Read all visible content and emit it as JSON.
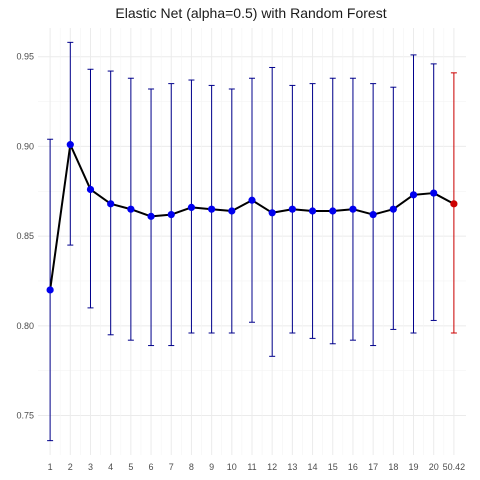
{
  "chart_data": {
    "type": "line",
    "title": "Elastic Net (alpha=0.5) with Random Forest",
    "xlabel": "",
    "ylabel": "",
    "ylim": [
      0.728,
      0.966
    ],
    "y_ticks": [
      0.75,
      0.8,
      0.85,
      0.9,
      0.95
    ],
    "y_tick_labels": [
      "0.75",
      "0.80",
      "0.85",
      "0.90",
      "0.95"
    ],
    "grid": true,
    "legend": "none",
    "categories": [
      "1",
      "2",
      "3",
      "4",
      "5",
      "6",
      "7",
      "8",
      "9",
      "10",
      "11",
      "12",
      "13",
      "14",
      "15",
      "16",
      "17",
      "18",
      "19",
      "20",
      "50.42"
    ],
    "series": [
      {
        "mean": [
          0.82,
          0.901,
          0.876,
          0.868,
          0.865,
          0.861,
          0.862,
          0.866,
          0.865,
          0.864,
          0.87,
          0.863,
          0.865,
          0.864,
          0.864,
          0.865,
          0.862,
          0.865,
          0.873,
          0.874,
          0.868
        ],
        "upper": [
          0.904,
          0.958,
          0.943,
          0.942,
          0.938,
          0.932,
          0.935,
          0.937,
          0.934,
          0.932,
          0.938,
          0.944,
          0.934,
          0.935,
          0.938,
          0.938,
          0.935,
          0.933,
          0.951,
          0.946,
          0.941
        ],
        "lower": [
          0.736,
          0.845,
          0.81,
          0.795,
          0.792,
          0.789,
          0.789,
          0.796,
          0.796,
          0.796,
          0.802,
          0.783,
          0.796,
          0.793,
          0.79,
          0.792,
          0.789,
          0.798,
          0.796,
          0.803,
          0.796
        ],
        "highlight_index": 20
      }
    ],
    "colors": {
      "line": "#000000",
      "point": "#0000ee",
      "errorbar": "#00008b",
      "highlight": "#cc0000",
      "grid": "#ebebeb"
    }
  }
}
